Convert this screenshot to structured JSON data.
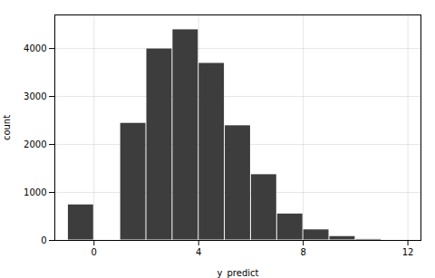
{
  "chart_data": {
    "type": "histogram",
    "bins": [
      -1,
      0,
      1,
      2,
      3,
      4,
      5,
      6,
      7,
      8,
      9,
      10,
      11
    ],
    "values": [
      750,
      0,
      2450,
      4000,
      4400,
      3700,
      2400,
      1380,
      560,
      230,
      90,
      30
    ],
    "color": "#3d3d3d",
    "xlabel": "y_predict",
    "ylabel": "count",
    "xlim": [
      -1.5,
      12.5
    ],
    "ylim": [
      0,
      4700
    ],
    "xticks": [
      0,
      4,
      8,
      12
    ],
    "yticks": [
      0,
      1000,
      2000,
      3000,
      4000
    ],
    "grid": true
  }
}
